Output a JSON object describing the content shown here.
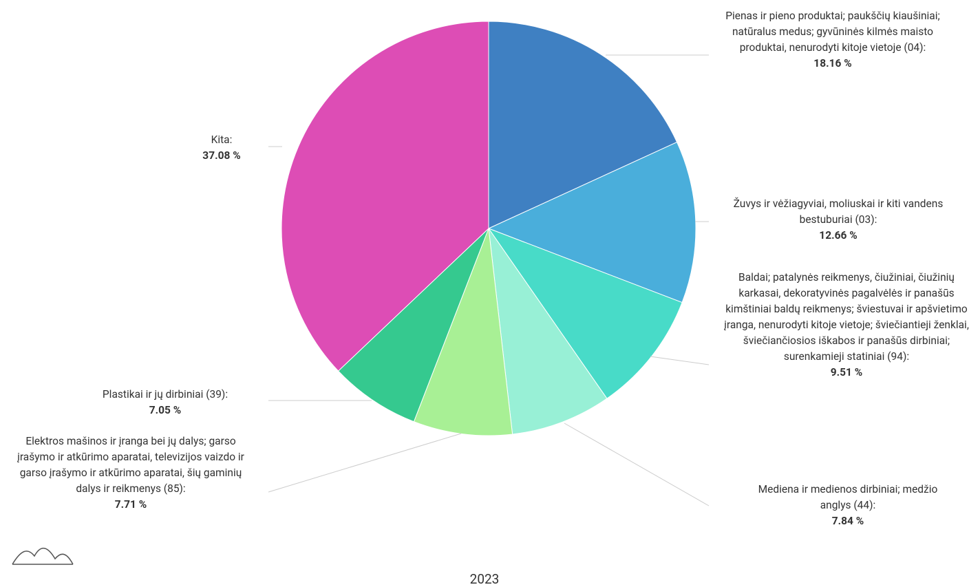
{
  "chart_data": {
    "type": "pie",
    "caption": "2023",
    "categories": [
      "Pienas ir pieno produktai; paukščių kiaušiniai; natūralus medus; gyvūninės kilmės maisto produktai, nenurodyti kitoje vietoje (04):",
      "Žuvys ir vėžiagyviai, moliuskai ir kiti vandens bestuburiai (03):",
      "Baldai; patalynės reikmenys, čiužiniai, čiužinių karkasai, dekoratyvinės pagalvėlės ir panašūs kimštiniai baldų reikmenys; šviestuvai ir apšvietimo įranga, nenurodyti kitoje vietoje; šviečiantieji ženklai, šviečiančiosios iškabos ir panašūs dirbiniai; surenkamieji statiniai (94):",
      "Mediena ir medienos dirbiniai; medžio anglys (44):",
      "Elektros mašinos ir įranga bei jų dalys; garso įrašymo ir atkūrimo aparatai, televizijos vaizdo ir garso įrašymo ir atkūrimo aparatai, šių gaminių dalys ir reikmenys (85):",
      "Plastikai ir jų dirbiniai (39):",
      "Kita:"
    ],
    "values": [
      18.16,
      12.66,
      9.51,
      7.84,
      7.71,
      7.05,
      37.08
    ],
    "value_labels": [
      "18.16 %",
      "12.66 %",
      "9.51 %",
      "7.84 %",
      "7.71 %",
      "7.05 %",
      "37.08 %"
    ],
    "colors": [
      "#3f80c2",
      "#4aaedb",
      "#48dbc8",
      "#98f0d6",
      "#a8f095",
      "#35c98f",
      "#dd4db5"
    ]
  }
}
